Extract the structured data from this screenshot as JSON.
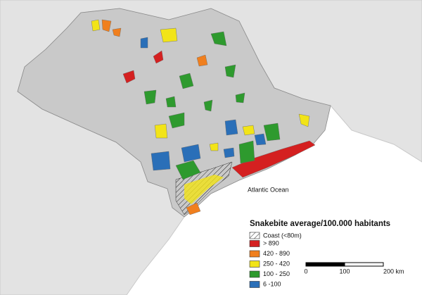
{
  "map": {
    "ocean_label": "Atlantic Ocean",
    "legend": {
      "title": "Snakebite average/100.000 habitants",
      "coast": "Coast (<80m)",
      "items": [
        {
          "label": "> 890",
          "color": "#d42020"
        },
        {
          "label": "420 - 890",
          "color": "#f07f1e"
        },
        {
          "label": "250 - 420",
          "color": "#f2e418"
        },
        {
          "label": "100 -  250",
          "color": "#2e9a2e"
        },
        {
          "label": "6 -100",
          "color": "#2a6fb8"
        }
      ]
    },
    "scale_bar": [
      "0",
      "100",
      "200 km"
    ]
  }
}
